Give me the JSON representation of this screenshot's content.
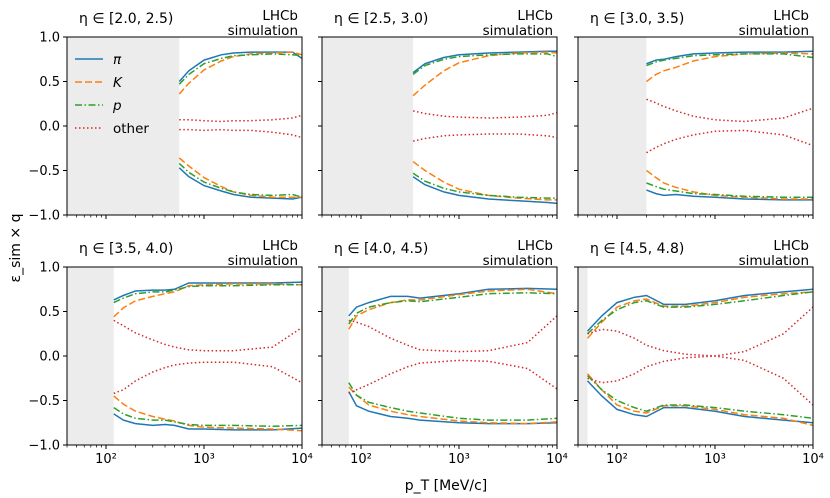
{
  "figure": {
    "xlabel": "p_T [MeV/c]",
    "ylabel": "ε_sim × q",
    "experiment_label_1": "LHCb",
    "experiment_label_2": "simulation",
    "ytick_labels": [
      "−1.0",
      "−0.5",
      "0.0",
      "0.5",
      "1.0"
    ],
    "xtick_labels": [
      "10²",
      "10³",
      "10⁴"
    ],
    "legend": [
      {
        "label": "π",
        "color": "#1f77b4",
        "style": "solid"
      },
      {
        "label": "K",
        "color": "#ff7f0e",
        "style": "dashed"
      },
      {
        "label": "p",
        "color": "#2ca02c",
        "style": "dashdot"
      },
      {
        "label": "other",
        "color": "#d62728",
        "style": "dotted"
      }
    ]
  },
  "chart_data": [
    {
      "type": "line",
      "title": "η ∈ [2.0, 2.5)",
      "xscale": "log",
      "xlim": [
        40,
        10000
      ],
      "ylim": [
        -1.0,
        1.0
      ],
      "shaded_region": [
        40,
        560
      ],
      "series": [
        {
          "name": "π",
          "x": [
            560,
            700,
            1000,
            1500,
            2000,
            3000,
            5000,
            8000,
            10000
          ],
          "values": [
            0.5,
            0.62,
            0.74,
            0.8,
            0.82,
            0.83,
            0.83,
            0.83,
            0.76
          ],
          "negative": [
            -0.47,
            -0.57,
            -0.67,
            -0.73,
            -0.77,
            -0.8,
            -0.81,
            -0.82,
            -0.8
          ]
        },
        {
          "name": "K",
          "x": [
            560,
            700,
            1000,
            1500,
            2000,
            3000,
            5000,
            8000,
            10000
          ],
          "values": [
            0.36,
            0.48,
            0.63,
            0.73,
            0.78,
            0.81,
            0.82,
            0.83,
            0.8
          ],
          "negative": [
            -0.36,
            -0.45,
            -0.58,
            -0.68,
            -0.74,
            -0.78,
            -0.8,
            -0.8,
            -0.8
          ]
        },
        {
          "name": "p",
          "x": [
            560,
            700,
            1000,
            1500,
            2000,
            3000,
            5000,
            8000,
            10000
          ],
          "values": [
            0.47,
            0.58,
            0.7,
            0.76,
            0.79,
            0.8,
            0.81,
            0.8,
            0.79
          ],
          "negative": [
            -0.42,
            -0.52,
            -0.63,
            -0.7,
            -0.74,
            -0.77,
            -0.78,
            -0.77,
            -0.8
          ]
        },
        {
          "name": "other",
          "x": [
            560,
            700,
            1000,
            1500,
            2000,
            3000,
            5000,
            8000,
            10000
          ],
          "values": [
            0.07,
            0.07,
            0.06,
            0.05,
            0.06,
            0.06,
            0.07,
            0.09,
            0.12
          ],
          "negative": [
            -0.04,
            -0.04,
            -0.05,
            -0.04,
            -0.05,
            -0.05,
            -0.07,
            -0.1,
            -0.13
          ]
        }
      ]
    },
    {
      "type": "line",
      "title": "η ∈ [2.5, 3.0)",
      "xscale": "log",
      "xlim": [
        40,
        10000
      ],
      "ylim": [
        -1.0,
        1.0
      ],
      "shaded_region": [
        40,
        340
      ],
      "series": [
        {
          "name": "π",
          "x": [
            340,
            450,
            700,
            1000,
            2000,
            4000,
            8000,
            10000
          ],
          "values": [
            0.6,
            0.7,
            0.77,
            0.8,
            0.82,
            0.83,
            0.84,
            0.84
          ],
          "negative": [
            -0.57,
            -0.66,
            -0.74,
            -0.78,
            -0.82,
            -0.84,
            -0.86,
            -0.87
          ]
        },
        {
          "name": "K",
          "x": [
            340,
            450,
            700,
            1000,
            2000,
            4000,
            8000,
            10000
          ],
          "values": [
            0.34,
            0.46,
            0.62,
            0.71,
            0.79,
            0.82,
            0.83,
            0.82
          ],
          "negative": [
            -0.4,
            -0.5,
            -0.63,
            -0.71,
            -0.78,
            -0.81,
            -0.83,
            -0.83
          ]
        },
        {
          "name": "p",
          "x": [
            340,
            450,
            700,
            1000,
            2000,
            4000,
            8000,
            10000
          ],
          "values": [
            0.58,
            0.68,
            0.75,
            0.78,
            0.8,
            0.81,
            0.81,
            0.78
          ],
          "negative": [
            -0.53,
            -0.62,
            -0.7,
            -0.74,
            -0.78,
            -0.8,
            -0.81,
            -0.81
          ]
        },
        {
          "name": "other",
          "x": [
            340,
            450,
            700,
            1000,
            2000,
            4000,
            8000,
            10000
          ],
          "values": [
            0.17,
            0.14,
            0.11,
            0.1,
            0.09,
            0.1,
            0.12,
            0.15
          ],
          "negative": [
            -0.17,
            -0.14,
            -0.11,
            -0.1,
            -0.09,
            -0.09,
            -0.11,
            -0.13
          ]
        }
      ]
    },
    {
      "type": "line",
      "title": "η ∈ [3.0, 3.5)",
      "xscale": "log",
      "xlim": [
        40,
        10000
      ],
      "ylim": [
        -1.0,
        1.0
      ],
      "shaded_region": [
        40,
        200
      ],
      "series": [
        {
          "name": "π",
          "x": [
            200,
            250,
            300,
            400,
            600,
            1000,
            2000,
            5000,
            10000
          ],
          "values": [
            0.7,
            0.74,
            0.75,
            0.78,
            0.81,
            0.82,
            0.83,
            0.83,
            0.84
          ],
          "negative": [
            -0.72,
            -0.76,
            -0.78,
            -0.77,
            -0.79,
            -0.8,
            -0.82,
            -0.83,
            -0.83
          ]
        },
        {
          "name": "K",
          "x": [
            200,
            250,
            300,
            400,
            600,
            1000,
            2000,
            5000,
            10000
          ],
          "values": [
            0.5,
            0.58,
            0.62,
            0.66,
            0.73,
            0.78,
            0.81,
            0.82,
            0.81
          ],
          "negative": [
            -0.5,
            -0.58,
            -0.64,
            -0.69,
            -0.74,
            -0.78,
            -0.8,
            -0.82,
            -0.82
          ]
        },
        {
          "name": "p",
          "x": [
            200,
            250,
            300,
            400,
            600,
            1000,
            2000,
            5000,
            10000
          ],
          "values": [
            0.68,
            0.72,
            0.74,
            0.76,
            0.79,
            0.8,
            0.81,
            0.81,
            0.77
          ],
          "negative": [
            -0.64,
            -0.68,
            -0.71,
            -0.73,
            -0.76,
            -0.77,
            -0.79,
            -0.8,
            -0.8
          ]
        },
        {
          "name": "other",
          "x": [
            200,
            250,
            300,
            400,
            600,
            1000,
            2000,
            5000,
            10000
          ],
          "values": [
            0.3,
            0.26,
            0.22,
            0.17,
            0.11,
            0.07,
            0.05,
            0.09,
            0.2
          ],
          "negative": [
            -0.3,
            -0.24,
            -0.2,
            -0.15,
            -0.1,
            -0.06,
            -0.05,
            -0.1,
            -0.22
          ]
        }
      ]
    },
    {
      "type": "line",
      "title": "η ∈ [3.5, 4.0)",
      "xscale": "log",
      "xlim": [
        40,
        10000
      ],
      "ylim": [
        -1.0,
        1.0
      ],
      "shaded_region": [
        40,
        120
      ],
      "series": [
        {
          "name": "π",
          "x": [
            120,
            150,
            200,
            300,
            400,
            500,
            700,
            1000,
            2000,
            5000,
            10000
          ],
          "values": [
            0.63,
            0.68,
            0.73,
            0.74,
            0.74,
            0.75,
            0.82,
            0.82,
            0.82,
            0.82,
            0.83
          ],
          "negative": [
            -0.65,
            -0.72,
            -0.76,
            -0.78,
            -0.77,
            -0.78,
            -0.82,
            -0.82,
            -0.83,
            -0.83,
            -0.81
          ]
        },
        {
          "name": "K",
          "x": [
            120,
            150,
            200,
            300,
            400,
            500,
            700,
            1000,
            2000,
            5000,
            10000
          ],
          "values": [
            0.44,
            0.54,
            0.62,
            0.67,
            0.7,
            0.72,
            0.79,
            0.8,
            0.81,
            0.81,
            0.8
          ],
          "negative": [
            -0.45,
            -0.54,
            -0.62,
            -0.68,
            -0.71,
            -0.73,
            -0.78,
            -0.8,
            -0.81,
            -0.82,
            -0.84
          ]
        },
        {
          "name": "p",
          "x": [
            120,
            150,
            200,
            300,
            400,
            500,
            700,
            1000,
            2000,
            5000,
            10000
          ],
          "values": [
            0.6,
            0.65,
            0.7,
            0.72,
            0.72,
            0.74,
            0.78,
            0.79,
            0.79,
            0.8,
            0.8
          ],
          "negative": [
            -0.58,
            -0.65,
            -0.7,
            -0.72,
            -0.72,
            -0.74,
            -0.77,
            -0.78,
            -0.78,
            -0.79,
            -0.78
          ]
        },
        {
          "name": "other",
          "x": [
            120,
            150,
            200,
            300,
            400,
            500,
            700,
            1000,
            2000,
            5000,
            10000
          ],
          "values": [
            0.4,
            0.34,
            0.26,
            0.18,
            0.13,
            0.1,
            0.07,
            0.06,
            0.06,
            0.1,
            0.32
          ],
          "negative": [
            -0.42,
            -0.38,
            -0.28,
            -0.18,
            -0.13,
            -0.1,
            -0.08,
            -0.07,
            -0.07,
            -0.12,
            -0.3
          ]
        }
      ]
    },
    {
      "type": "line",
      "title": "η ∈ [4.0, 4.5)",
      "xscale": "log",
      "xlim": [
        40,
        10000
      ],
      "ylim": [
        -1.0,
        1.0
      ],
      "shaded_region": [
        40,
        75
      ],
      "series": [
        {
          "name": "π",
          "x": [
            75,
            90,
            120,
            200,
            300,
            400,
            1000,
            2000,
            5000,
            10000
          ],
          "values": [
            0.45,
            0.55,
            0.6,
            0.67,
            0.67,
            0.65,
            0.7,
            0.75,
            0.76,
            0.75
          ],
          "negative": [
            -0.4,
            -0.56,
            -0.62,
            -0.68,
            -0.7,
            -0.72,
            -0.75,
            -0.76,
            -0.76,
            -0.75
          ]
        },
        {
          "name": "K",
          "x": [
            75,
            90,
            120,
            200,
            300,
            400,
            1000,
            2000,
            5000,
            10000
          ],
          "values": [
            0.3,
            0.45,
            0.52,
            0.6,
            0.63,
            0.63,
            0.69,
            0.73,
            0.75,
            0.7
          ],
          "negative": [
            -0.35,
            -0.44,
            -0.55,
            -0.62,
            -0.66,
            -0.68,
            -0.73,
            -0.75,
            -0.76,
            -0.74
          ]
        },
        {
          "name": "p",
          "x": [
            75,
            90,
            120,
            200,
            300,
            400,
            1000,
            2000,
            5000,
            10000
          ],
          "values": [
            0.36,
            0.48,
            0.55,
            0.6,
            0.62,
            0.61,
            0.66,
            0.7,
            0.71,
            0.7
          ],
          "negative": [
            -0.3,
            -0.44,
            -0.52,
            -0.58,
            -0.62,
            -0.64,
            -0.7,
            -0.72,
            -0.72,
            -0.7
          ]
        },
        {
          "name": "other",
          "x": [
            75,
            90,
            120,
            200,
            300,
            400,
            1000,
            2000,
            5000,
            10000
          ],
          "values": [
            0.4,
            0.38,
            0.33,
            0.2,
            0.12,
            0.07,
            0.05,
            0.06,
            0.15,
            0.45
          ],
          "negative": [
            -0.42,
            -0.38,
            -0.32,
            -0.2,
            -0.12,
            -0.08,
            -0.05,
            -0.06,
            -0.14,
            -0.37
          ]
        }
      ]
    },
    {
      "type": "line",
      "title": "η ∈ [4.5, 4.8)",
      "xscale": "log",
      "xlim": [
        40,
        10000
      ],
      "ylim": [
        -1.0,
        1.0
      ],
      "shaded_region": [
        40,
        50
      ],
      "series": [
        {
          "name": "π",
          "x": [
            50,
            70,
            100,
            150,
            200,
            300,
            500,
            1000,
            2000,
            5000,
            10000
          ],
          "values": [
            0.28,
            0.45,
            0.6,
            0.66,
            0.68,
            0.58,
            0.58,
            0.62,
            0.68,
            0.72,
            0.75
          ],
          "negative": [
            -0.28,
            -0.45,
            -0.6,
            -0.66,
            -0.68,
            -0.58,
            -0.58,
            -0.62,
            -0.68,
            -0.72,
            -0.75
          ]
        },
        {
          "name": "K",
          "x": [
            50,
            70,
            100,
            150,
            200,
            300,
            500,
            1000,
            2000,
            5000,
            10000
          ],
          "values": [
            0.2,
            0.38,
            0.55,
            0.62,
            0.64,
            0.56,
            0.56,
            0.6,
            0.66,
            0.7,
            0.72
          ],
          "negative": [
            -0.2,
            -0.38,
            -0.55,
            -0.62,
            -0.64,
            -0.56,
            -0.56,
            -0.6,
            -0.66,
            -0.7,
            -0.78
          ]
        },
        {
          "name": "p",
          "x": [
            50,
            70,
            100,
            150,
            200,
            300,
            500,
            1000,
            2000,
            5000,
            10000
          ],
          "values": [
            0.25,
            0.4,
            0.52,
            0.6,
            0.62,
            0.55,
            0.55,
            0.58,
            0.62,
            0.68,
            0.72
          ],
          "negative": [
            -0.22,
            -0.38,
            -0.5,
            -0.58,
            -0.62,
            -0.55,
            -0.55,
            -0.58,
            -0.62,
            -0.66,
            -0.7
          ]
        },
        {
          "name": "other",
          "x": [
            50,
            70,
            100,
            150,
            200,
            300,
            500,
            1000,
            2000,
            5000,
            10000
          ],
          "values": [
            0.25,
            0.3,
            0.28,
            0.2,
            0.12,
            0.06,
            0.02,
            0.0,
            0.05,
            0.25,
            0.55
          ],
          "negative": [
            -0.25,
            -0.3,
            -0.28,
            -0.2,
            -0.12,
            -0.06,
            -0.02,
            0.0,
            -0.05,
            -0.25,
            -0.55
          ]
        }
      ]
    }
  ]
}
